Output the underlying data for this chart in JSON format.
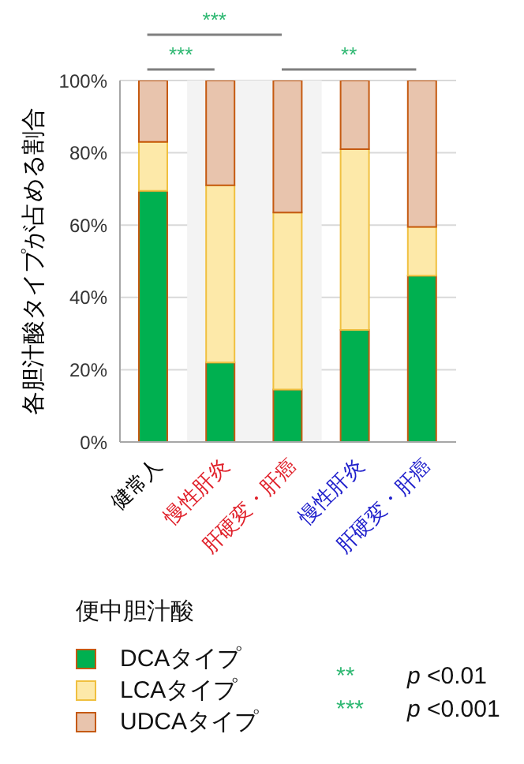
{
  "chart_data": {
    "type": "bar",
    "stacked": true,
    "ylabel": "各胆汁酸タイプが占める割合",
    "legend_title": "便中胆汁酸",
    "legend": "bottom",
    "grid": "y",
    "categories": [
      "健常人",
      "慢性肝炎",
      "肝硬変・肝癌",
      "慢性肝炎",
      "肝硬変・肝癌"
    ],
    "ylim": [
      0,
      100
    ],
    "yticks": [
      {
        "value": 0,
        "label": "0%"
      },
      {
        "value": 20,
        "label": "20%"
      },
      {
        "value": 40,
        "label": "40%"
      },
      {
        "value": 60,
        "label": "60%"
      },
      {
        "value": 80,
        "label": "80%"
      },
      {
        "value": 100,
        "label": "100%"
      }
    ],
    "bands": [
      {
        "axis": "x",
        "from": "慢性肝炎",
        "to": "肝硬変・肝癌",
        "color": "#f3f3f3"
      }
    ],
    "series": [
      {
        "name": "DCAタイプ",
        "color": "#00b050",
        "values": [
          69.5,
          22,
          14.5,
          31,
          46
        ]
      },
      {
        "name": "LCAタイプ",
        "color": "#fde9a9",
        "values": [
          13.5,
          49,
          49,
          50,
          13.5
        ]
      },
      {
        "name": "UDCAタイプ",
        "color": "#e8c4ad",
        "values": [
          17,
          29,
          36.5,
          19,
          40.5
        ]
      }
    ],
    "annotations": [
      "***",
      "***",
      "**",
      "**",
      "p <0.01",
      "***",
      "p <0.001"
    ]
  }
}
